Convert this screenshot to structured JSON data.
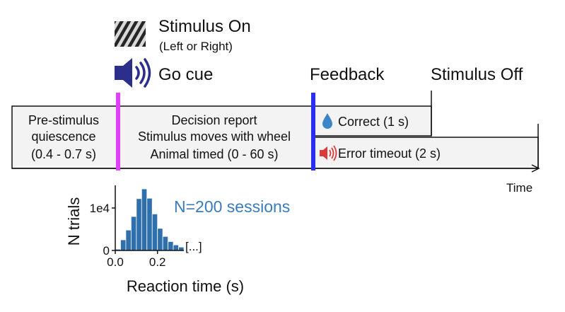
{
  "labels": {
    "stimulus_on": "Stimulus On",
    "stimulus_on_sub": "(Left or Right)",
    "go_cue": "Go cue",
    "feedback": "Feedback",
    "stimulus_off": "Stimulus Off",
    "time": "Time"
  },
  "segments": {
    "prestim": [
      "Pre-stimulus",
      "quiescence",
      "(0.4 - 0.7 s)"
    ],
    "decision": [
      "Decision report",
      "Stimulus moves with wheel",
      "Animal timed (0 - 60 s)"
    ],
    "correct": "Correct (1 s)",
    "error": "Error timeout (2 s)"
  },
  "icons": {
    "stimulus": "grating-stimulus-icon",
    "speaker": "speaker-icon",
    "water": "water-drop-icon",
    "error_speaker": "error-speaker-icon"
  },
  "colors": {
    "go_cue_marker": "#e040fb",
    "feedback_marker": "#2a2ef0",
    "speaker": "#2c2e8c",
    "water": "#3b86c8",
    "error_speaker": "#d93a3a",
    "histogram": "#2f6fab",
    "annotation": "#3a7bb8",
    "box_fill": "#f3f3f3"
  },
  "chart_data": {
    "type": "bar",
    "x": [
      0.0125,
      0.0375,
      0.0625,
      0.0875,
      0.1125,
      0.1375,
      0.1625,
      0.1875,
      0.2125,
      0.2375,
      0.2625,
      0.2875,
      0.3125
    ],
    "values": [
      300,
      2500,
      4800,
      8000,
      12200,
      14500,
      12300,
      8600,
      5200,
      3300,
      2100,
      1300,
      800
    ],
    "title": "",
    "xlabel": "Reaction time (s)",
    "ylabel": "N trials",
    "xticks": [
      "0.0",
      "0.2"
    ],
    "yticks": [
      "0",
      "1e4"
    ],
    "xlim": [
      0,
      0.325
    ],
    "ylim": [
      0,
      15000
    ],
    "truncation_label": "[...]",
    "annotation": "N=200 sessions"
  }
}
